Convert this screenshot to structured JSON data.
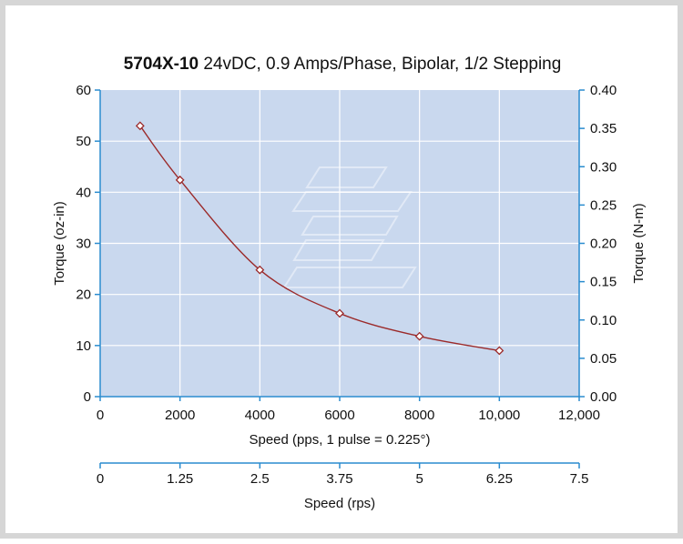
{
  "chart_data": {
    "type": "line",
    "title": {
      "bold": "5704X-10",
      "rest": " 24vDC, 0.9 Amps/Phase, Bipolar, 1/2 Stepping"
    },
    "xlabel": "Speed (pps, 1 pulse = 0.225°)",
    "ylabel": "Torque (oz-in)",
    "y2label": "Torque (N-m)",
    "x2label": "Speed (rps)",
    "xlim": [
      0,
      12000
    ],
    "ylim": [
      0,
      60
    ],
    "y2lim": [
      0,
      0.4
    ],
    "x2lim": [
      0,
      7.5
    ],
    "x_ticks": [
      {
        "value": 0,
        "label": "0"
      },
      {
        "value": 2000,
        "label": "2000"
      },
      {
        "value": 4000,
        "label": "4000"
      },
      {
        "value": 6000,
        "label": "6000"
      },
      {
        "value": 8000,
        "label": "8000"
      },
      {
        "value": 10000,
        "label": "10,000"
      },
      {
        "value": 12000,
        "label": "12,000"
      }
    ],
    "y_ticks": [
      {
        "value": 0,
        "label": "0"
      },
      {
        "value": 10,
        "label": "10"
      },
      {
        "value": 20,
        "label": "20"
      },
      {
        "value": 30,
        "label": "30"
      },
      {
        "value": 40,
        "label": "40"
      },
      {
        "value": 50,
        "label": "50"
      },
      {
        "value": 60,
        "label": "60"
      }
    ],
    "y2_ticks": [
      {
        "value": 0,
        "label": "0.00"
      },
      {
        "value": 0.05,
        "label": "0.05"
      },
      {
        "value": 0.1,
        "label": "0.10"
      },
      {
        "value": 0.15,
        "label": "0.15"
      },
      {
        "value": 0.2,
        "label": "0.20"
      },
      {
        "value": 0.25,
        "label": "0.25"
      },
      {
        "value": 0.3,
        "label": "0.30"
      },
      {
        "value": 0.35,
        "label": "0.35"
      },
      {
        "value": 0.4,
        "label": "0.40"
      }
    ],
    "x2_ticks": [
      {
        "value": 0,
        "label": "0"
      },
      {
        "value": 1.25,
        "label": "1.25"
      },
      {
        "value": 2.5,
        "label": "2.5"
      },
      {
        "value": 3.75,
        "label": "3.75"
      },
      {
        "value": 5,
        "label": "5"
      },
      {
        "value": 6.25,
        "label": "6.25"
      },
      {
        "value": 7.5,
        "label": "7.5"
      }
    ],
    "series": [
      {
        "x": [
          1000,
          2000,
          4000,
          6000,
          8000,
          10000
        ],
        "y": [
          53,
          42.4,
          24.8,
          16.3,
          11.8,
          9
        ]
      }
    ],
    "grid": true,
    "colors": {
      "plot_background": "#c9d8ee",
      "grid": "#ffffff",
      "axis": "#2a8ccf",
      "line": "#9b2a2a",
      "marker_fill": "#ffffff"
    }
  }
}
